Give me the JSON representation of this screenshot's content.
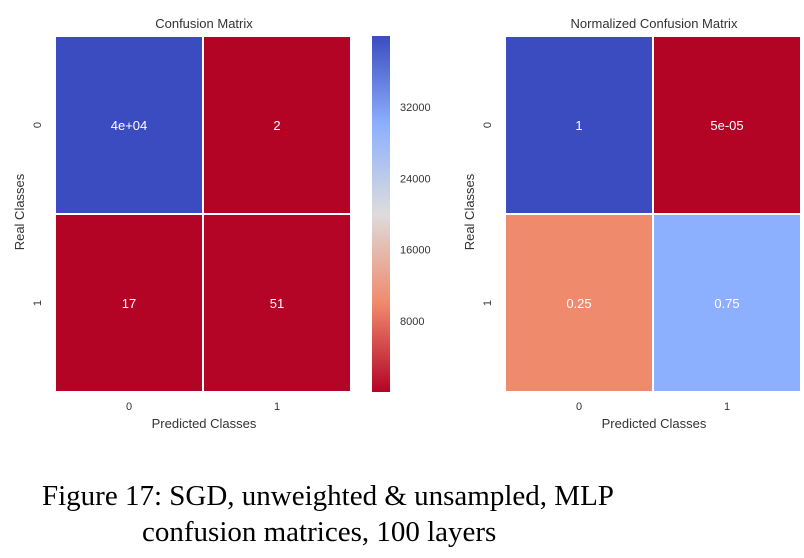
{
  "chart_data": [
    {
      "type": "heatmap",
      "title": "Confusion Matrix",
      "xlabel": "Predicted Classes",
      "ylabel": "Real Classes",
      "x_categories": [
        "0",
        "1"
      ],
      "y_categories": [
        "0",
        "1"
      ],
      "values": [
        [
          40000,
          2
        ],
        [
          17,
          51
        ]
      ],
      "annotations": [
        [
          "4e+04",
          "2"
        ],
        [
          "17",
          "51"
        ]
      ],
      "colormap": "coolwarm_r",
      "colorbar": {
        "vmin": 2,
        "vmax": 40000,
        "ticks": [
          8000,
          16000,
          24000,
          32000
        ],
        "tick_labels": [
          "8000",
          "16000",
          "24000",
          "32000"
        ]
      }
    },
    {
      "type": "heatmap",
      "title": "Normalized Confusion Matrix",
      "xlabel": "Predicted Classes",
      "ylabel": "Real Classes",
      "x_categories": [
        "0",
        "1"
      ],
      "y_categories": [
        "0",
        "1"
      ],
      "values": [
        [
          1,
          5e-05
        ],
        [
          0.25,
          0.75
        ]
      ],
      "annotations": [
        [
          "1",
          "5e-05"
        ],
        [
          "0.25",
          "0.75"
        ]
      ],
      "colormap": "coolwarm_r",
      "colorbar": null
    }
  ],
  "caption": {
    "line1": "Figure 17: SGD, unweighted & unsampled, MLP",
    "line2": "confusion matrices, 100 layers"
  },
  "colors": {
    "blue": "#3b4cc0",
    "red": "#b40426",
    "cell_border": "#ffffff",
    "tick_text": "#333333"
  }
}
